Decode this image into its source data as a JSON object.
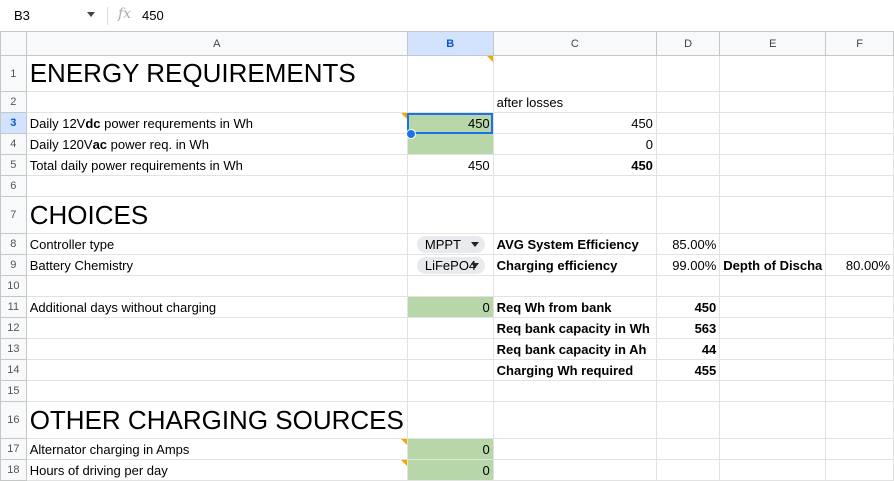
{
  "formula_bar": {
    "cell_ref": "B3",
    "fx_icon": "fx-icon",
    "value": "450"
  },
  "columns": [
    "A",
    "B",
    "C",
    "D",
    "E",
    "F"
  ],
  "selected": {
    "column": "B",
    "row": 3
  },
  "rows": [
    {
      "n": "1",
      "h": 36,
      "cells": {
        "A": {
          "v": "ENERGY REQUIREMENTS",
          "s": "big"
        },
        "B": {
          "v": "",
          "s": "note"
        }
      }
    },
    {
      "n": "2",
      "h": 21,
      "cells": {
        "C": {
          "v": "after losses"
        }
      }
    },
    {
      "n": "3",
      "h": 21,
      "cells": {
        "A": {
          "v": "Daily 12V",
          "bold_suffix": "dc",
          "rest": " power requrements in Wh",
          "s": "note"
        },
        "B": {
          "v": "450",
          "s": "r g active"
        },
        "C": {
          "v": "450",
          "s": "r"
        }
      }
    },
    {
      "n": "4",
      "h": 21,
      "cells": {
        "A": {
          "v": "Daily 120V",
          "bold_suffix": "ac",
          "rest": " power req. in Wh"
        },
        "B": {
          "v": "",
          "s": "g"
        },
        "C": {
          "v": "0",
          "s": "r"
        }
      }
    },
    {
      "n": "5",
      "h": 21,
      "cells": {
        "A": {
          "v": "Total daily power requirements in Wh"
        },
        "B": {
          "v": "450",
          "s": "r"
        },
        "C": {
          "v": "450",
          "s": "r b"
        }
      }
    },
    {
      "n": "6",
      "h": 21,
      "cells": {}
    },
    {
      "n": "7",
      "h": 37,
      "cells": {
        "A": {
          "v": "CHOICES",
          "s": "big"
        }
      }
    },
    {
      "n": "8",
      "h": 21,
      "cells": {
        "A": {
          "v": "Controller type"
        },
        "B": {
          "v": "MPPT",
          "s": "chip"
        },
        "C": {
          "v": "AVG System Efficiency",
          "s": "b"
        },
        "D": {
          "v": "85.00%",
          "s": "r"
        }
      }
    },
    {
      "n": "9",
      "h": 21,
      "cells": {
        "A": {
          "v": "Battery Chemistry"
        },
        "B": {
          "v": "LiFePO4",
          "s": "chip"
        },
        "C": {
          "v": "Charging efficiency",
          "s": "b"
        },
        "D": {
          "v": "99.00%",
          "s": "r"
        },
        "E": {
          "v": "Depth of Discha",
          "s": "b"
        },
        "F": {
          "v": "80.00%",
          "s": "r"
        }
      }
    },
    {
      "n": "10",
      "h": 21,
      "cells": {}
    },
    {
      "n": "11",
      "h": 21,
      "cells": {
        "A": {
          "v": "Additional days without charging"
        },
        "B": {
          "v": "0",
          "s": "r g"
        },
        "C": {
          "v": "Req Wh from bank",
          "s": "b"
        },
        "D": {
          "v": "450",
          "s": "r b"
        }
      }
    },
    {
      "n": "12",
      "h": 21,
      "cells": {
        "C": {
          "v": "Req bank capacity in Wh",
          "s": "b"
        },
        "D": {
          "v": "563",
          "s": "r b"
        }
      }
    },
    {
      "n": "13",
      "h": 21,
      "cells": {
        "C": {
          "v": "Req bank capacity in Ah",
          "s": "b"
        },
        "D": {
          "v": "44",
          "s": "r b"
        }
      }
    },
    {
      "n": "14",
      "h": 21,
      "cells": {
        "C": {
          "v": "Charging Wh required",
          "s": "b"
        },
        "D": {
          "v": "455",
          "s": "r b"
        }
      }
    },
    {
      "n": "15",
      "h": 21,
      "cells": {}
    },
    {
      "n": "16",
      "h": 37,
      "cells": {
        "A": {
          "v": "OTHER CHARGING SOURCES",
          "s": "big"
        }
      }
    },
    {
      "n": "17",
      "h": 21,
      "cells": {
        "A": {
          "v": "Alternator charging in Amps",
          "s": "note"
        },
        "B": {
          "v": "0",
          "s": "r g"
        }
      }
    },
    {
      "n": "18",
      "h": 21,
      "cells": {
        "A": {
          "v": "Hours of driving per day",
          "s": "note"
        },
        "B": {
          "v": "0",
          "s": "r g"
        }
      }
    }
  ]
}
